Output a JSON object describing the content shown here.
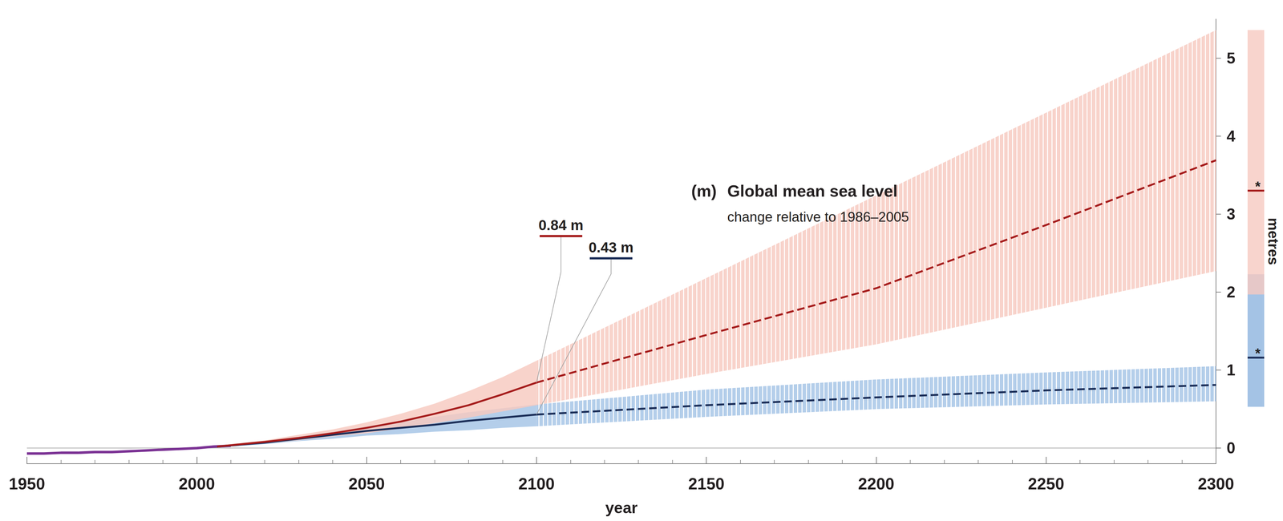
{
  "chart_data": {
    "type": "line",
    "panel_label": "(m)",
    "title": "Global mean sea level",
    "subtitle": "change relative to 1986–2005",
    "xlabel": "year",
    "ylabel": "metres",
    "xlim": [
      1950,
      2300
    ],
    "xticks": [
      1950,
      2000,
      2050,
      2100,
      2150,
      2200,
      2250,
      2300
    ],
    "ylim": [
      -0.2,
      5.5
    ],
    "yticks": [
      0,
      1,
      2,
      3,
      4,
      5
    ],
    "grid": false,
    "hline": 0,
    "series": [
      {
        "type": "line",
        "color": "#7b3294",
        "line_style": "solid",
        "x": [
          1950,
          1955,
          1960,
          1965,
          1970,
          1975,
          1980,
          1985,
          1990,
          1995,
          2000,
          2005,
          2010
        ],
        "values": [
          -0.07,
          -0.07,
          -0.06,
          -0.06,
          -0.05,
          -0.05,
          -0.04,
          -0.03,
          -0.02,
          -0.01,
          0.0,
          0.02,
          0.03
        ]
      },
      {
        "type": "line",
        "colors": [
          "#1a2d57",
          "#a4c3e5"
        ],
        "line_style": "solid",
        "x": [
          2006,
          2020,
          2030,
          2040,
          2050,
          2060,
          2070,
          2080,
          2090,
          2100
        ],
        "values": [
          0.02,
          0.07,
          0.12,
          0.17,
          0.22,
          0.26,
          0.3,
          0.35,
          0.39,
          0.43
        ],
        "low": [
          0.01,
          0.05,
          0.09,
          0.12,
          0.16,
          0.18,
          0.21,
          0.23,
          0.26,
          0.28
        ],
        "high": [
          0.03,
          0.09,
          0.15,
          0.21,
          0.28,
          0.34,
          0.4,
          0.46,
          0.51,
          0.56
        ]
      },
      {
        "type": "line",
        "colors": [
          "#a51c1c",
          "#f6c9c0"
        ],
        "line_style": "solid",
        "x": [
          2006,
          2020,
          2030,
          2040,
          2050,
          2060,
          2070,
          2080,
          2090,
          2100
        ],
        "values": [
          0.02,
          0.08,
          0.13,
          0.19,
          0.26,
          0.34,
          0.44,
          0.55,
          0.69,
          0.84
        ],
        "low": [
          0.02,
          0.06,
          0.1,
          0.15,
          0.19,
          0.25,
          0.32,
          0.39,
          0.47,
          0.55
        ],
        "high": [
          0.03,
          0.1,
          0.17,
          0.24,
          0.33,
          0.44,
          0.57,
          0.73,
          0.91,
          1.12
        ]
      },
      {
        "type": "line",
        "colors": [
          "#1a2d57",
          "#a4c3e5"
        ],
        "line_style": "dashed",
        "x": [
          2100,
          2150,
          2200,
          2250,
          2300
        ],
        "values": [
          0.43,
          0.55,
          0.65,
          0.74,
          0.81
        ],
        "low": [
          0.28,
          0.4,
          0.5,
          0.56,
          0.6
        ],
        "high": [
          0.56,
          0.75,
          0.88,
          0.97,
          1.05
        ]
      },
      {
        "type": "line",
        "colors": [
          "#a51c1c",
          "#f6c9c0"
        ],
        "line_style": "dashed",
        "x": [
          2100,
          2150,
          2200,
          2250,
          2300
        ],
        "values": [
          0.84,
          1.45,
          2.05,
          2.86,
          3.69
        ],
        "low": [
          0.55,
          0.95,
          1.33,
          1.8,
          2.27
        ],
        "high": [
          1.12,
          2.18,
          3.24,
          4.3,
          5.36
        ]
      }
    ],
    "annotations": [
      {
        "text": "0.84 m",
        "x": 2100,
        "y": 0.84,
        "color": "#a51c1c"
      },
      {
        "text": "0.43 m",
        "x": 2100,
        "y": 0.43,
        "color": "#1a2d57"
      }
    ],
    "bar_2300": [
      {
        "low": 0.53,
        "high": 2.23,
        "median": 1.16,
        "label": "*",
        "colors": [
          "#1a2d57",
          "#a4c3e5"
        ]
      },
      {
        "low": 1.97,
        "high": 5.36,
        "median": 3.3,
        "label": "*",
        "colors": [
          "#a51c1c",
          "#f6c9c0"
        ]
      }
    ]
  }
}
